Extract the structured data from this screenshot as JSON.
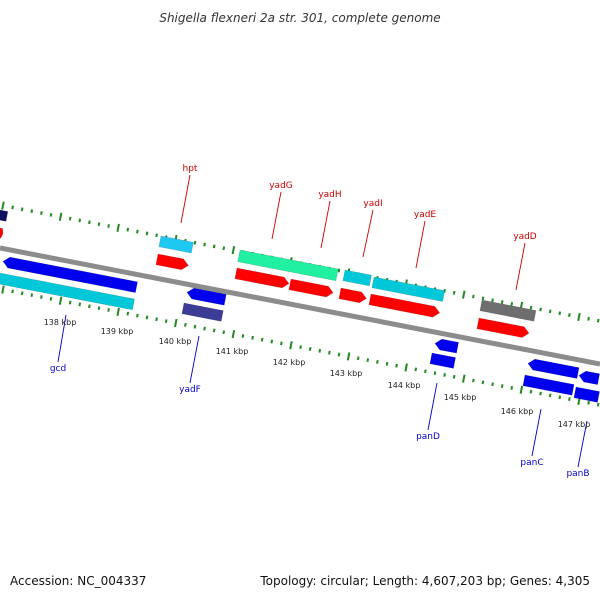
{
  "title": "Shigella flexneri 2a str. 301, complete genome",
  "footer": {
    "accession": "Accession: NC_004337",
    "summary": "Topology: circular; Length: 4,607,203 bp; Genes: 4,305"
  },
  "colors": {
    "backbone": "#8c8c8c",
    "dots": "#1f8a1f",
    "top_label": "#cc0000",
    "bottom_label": "#0000cc",
    "red": "#ff0000",
    "blue": "#0000ee",
    "cyan": "#00c8d8",
    "sky": "#1ec8f0",
    "green": "#20f0a0",
    "gray": "#6e6e6e",
    "slate": "#3c3c96",
    "navy": "#101060"
  },
  "ticks": [
    {
      "label": "138 kbp"
    },
    {
      "label": "139 kbp"
    },
    {
      "label": "140 kbp"
    },
    {
      "label": "141 kbp"
    },
    {
      "label": "142 kbp"
    },
    {
      "label": "143 kbp"
    },
    {
      "label": "144 kbp"
    },
    {
      "label": "145 kbp"
    },
    {
      "label": "146 kbp"
    },
    {
      "label": "147 kbp"
    }
  ],
  "top_labels": [
    {
      "name": "hpt"
    },
    {
      "name": "yadG"
    },
    {
      "name": "yadH"
    },
    {
      "name": "yadI"
    },
    {
      "name": "yadE"
    },
    {
      "name": "yadD"
    }
  ],
  "bottom_labels": [
    {
      "name": "gcd"
    },
    {
      "name": "yadF"
    },
    {
      "name": "panD"
    },
    {
      "name": "panC"
    },
    {
      "name": "panB"
    }
  ]
}
